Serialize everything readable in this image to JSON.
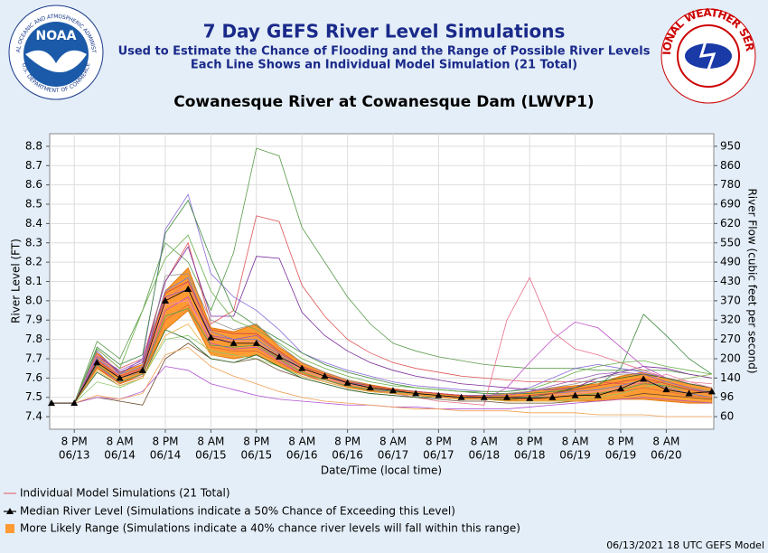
{
  "header": {
    "noaa_logo_text": "NOAA",
    "noaa_ring_top": "NATIONAL OCEANIC AND ATMOSPHERIC ADMINISTRATION",
    "noaa_ring_bottom": "U.S. DEPARTMENT OF COMMERCE",
    "nws_logo_text": "NATIONAL WEATHER SERVICE"
  },
  "footer": "06/13/2021 18 UTC GEFS Model",
  "chart_data": {
    "type": "line",
    "title": "7 Day GEFS River Level Simulations",
    "subtitle": [
      "Used to Estimate the Chance of Flooding and the Range of Possible River Levels",
      "Each Line Shows an Individual Model Simulation (21 Total)"
    ],
    "station": "Cowanesque River at Cowanesque Dam (LWVP1)",
    "y_label": "River Level (FT)",
    "y2_label": "River Flow (cubic feet per second)",
    "x_label": "Date/Time (local time)",
    "categories": [
      null,
      [
        "8 PM",
        "06/13"
      ],
      null,
      [
        "8 AM",
        "06/14"
      ],
      null,
      [
        "8 PM",
        "06/14"
      ],
      null,
      [
        "8 AM",
        "06/15"
      ],
      null,
      [
        "8 PM",
        "06/15"
      ],
      null,
      [
        "8 AM",
        "06/16"
      ],
      null,
      [
        "8 PM",
        "06/16"
      ],
      null,
      [
        "8 AM",
        "06/17"
      ],
      null,
      [
        "8 PM",
        "06/17"
      ],
      null,
      [
        "8 AM",
        "06/18"
      ],
      null,
      [
        "8 PM",
        "06/18"
      ],
      null,
      [
        "8 AM",
        "06/19"
      ],
      null,
      [
        "8 PM",
        "06/19"
      ],
      null,
      [
        "8 AM",
        "06/20"
      ],
      null,
      null
    ],
    "ylim": [
      7.335,
      8.865
    ],
    "yticks": [
      7.4,
      7.5,
      7.6,
      7.7,
      7.8,
      7.9,
      {
        "value": 8,
        "label": "8.0"
      },
      8.1,
      8.2,
      8.3,
      8.4,
      8.5,
      8.6,
      8.7,
      8.8
    ],
    "y2ticks": [
      60,
      96,
      140,
      200,
      270,
      320,
      370,
      430,
      490,
      550,
      620,
      690,
      780,
      860,
      950
    ],
    "grid": true,
    "simulations": {
      "name": "Individual Model Simulations (21 Total)",
      "legend_color": "#e8707a",
      "series": [
        {
          "color": "#5a9a4a",
          "values": [
            7.47,
            7.47,
            7.79,
            7.7,
            7.95,
            8.3,
            8.2,
            7.95,
            8.25,
            8.79,
            8.75,
            8.38,
            8.2,
            8.02,
            7.88,
            7.78,
            7.74,
            7.71,
            7.69,
            7.67,
            7.66,
            7.65,
            7.65,
            7.65,
            7.64,
            7.64,
            7.64,
            7.64,
            7.62,
            7.6
          ]
        },
        {
          "color": "#e05555",
          "values": [
            7.47,
            7.47,
            7.75,
            7.65,
            7.7,
            8.1,
            8.3,
            7.88,
            7.95,
            8.44,
            8.41,
            8.08,
            7.92,
            7.8,
            7.73,
            7.68,
            7.65,
            7.63,
            7.61,
            7.6,
            7.59,
            7.58,
            7.58,
            7.58,
            7.58,
            7.57,
            7.57,
            7.58,
            7.6,
            7.62
          ]
        },
        {
          "color": "#8a6ad8",
          "values": [
            7.47,
            7.47,
            7.74,
            7.62,
            7.7,
            8.37,
            8.55,
            8.14,
            8.02,
            7.95,
            7.85,
            7.73,
            7.68,
            7.64,
            7.61,
            7.58,
            7.56,
            7.55,
            7.54,
            7.53,
            7.53,
            7.55,
            7.6,
            7.65,
            7.67,
            7.65,
            7.63,
            7.6,
            7.57,
            7.55
          ]
        },
        {
          "color": "#3f8a3f",
          "values": [
            7.47,
            7.47,
            7.76,
            7.67,
            7.72,
            8.35,
            8.52,
            8.22,
            7.95,
            7.87,
            7.8,
            7.73,
            7.67,
            7.63,
            7.6,
            7.57,
            7.55,
            7.54,
            7.53,
            7.52,
            7.52,
            7.52,
            7.53,
            7.54,
            7.56,
            7.65,
            7.93,
            7.82,
            7.7,
            7.62
          ]
        },
        {
          "color": "#7a2a9a",
          "values": [
            7.47,
            7.47,
            7.72,
            7.63,
            7.68,
            8.1,
            8.28,
            7.92,
            7.92,
            8.23,
            8.22,
            7.94,
            7.82,
            7.74,
            7.68,
            7.64,
            7.61,
            7.59,
            7.57,
            7.56,
            7.55,
            7.54,
            7.54,
            7.55,
            7.6,
            7.63,
            7.66,
            7.65,
            7.62,
            7.6
          ]
        },
        {
          "color": "#e8708a",
          "values": [
            7.47,
            7.47,
            7.7,
            7.6,
            7.65,
            8.0,
            8.1,
            7.82,
            7.78,
            7.78,
            7.7,
            7.64,
            7.6,
            7.56,
            7.54,
            7.52,
            7.5,
            7.48,
            7.47,
            7.46,
            7.9,
            8.12,
            7.84,
            7.75,
            7.72,
            7.68,
            7.64,
            7.6,
            7.58,
            7.57
          ]
        },
        {
          "color": "#c050c8",
          "values": [
            7.47,
            7.47,
            7.66,
            7.58,
            7.62,
            7.95,
            8.02,
            7.78,
            7.75,
            7.76,
            7.69,
            7.62,
            7.58,
            7.55,
            7.53,
            7.52,
            7.51,
            7.5,
            7.49,
            7.49,
            7.55,
            7.68,
            7.8,
            7.89,
            7.86,
            7.76,
            7.66,
            7.6,
            7.57,
            7.55
          ]
        },
        {
          "color": "#6ab04a",
          "values": [
            7.47,
            7.47,
            7.75,
            7.65,
            7.95,
            8.22,
            8.34,
            8.05,
            7.9,
            7.85,
            7.78,
            7.7,
            7.65,
            7.61,
            7.58,
            7.56,
            7.55,
            7.54,
            7.53,
            7.53,
            7.53,
            7.54,
            7.58,
            7.63,
            7.66,
            7.68,
            7.69,
            7.66,
            7.64,
            7.62
          ]
        },
        {
          "color": "#8ac86a",
          "values": [
            7.47,
            7.47,
            7.58,
            7.55,
            7.6,
            7.8,
            7.82,
            7.74,
            7.72,
            7.7,
            7.66,
            7.61,
            7.58,
            7.55,
            7.53,
            7.52,
            7.51,
            7.5,
            7.49,
            7.49,
            7.48,
            7.48,
            7.48,
            7.49,
            7.5,
            7.52,
            7.55,
            7.58,
            7.6,
            7.62
          ]
        },
        {
          "color": "#6a4a2a",
          "values": [
            7.47,
            7.47,
            7.5,
            7.48,
            7.46,
            7.7,
            7.78,
            7.7,
            7.68,
            7.7,
            7.64,
            7.6,
            7.57,
            7.54,
            7.52,
            7.51,
            7.5,
            7.49,
            7.48,
            7.48,
            7.47,
            7.47,
            7.47,
            7.48,
            7.49,
            7.5,
            7.52,
            7.51,
            7.5,
            7.49
          ]
        },
        {
          "color": "#b050d0",
          "values": [
            7.47,
            7.47,
            7.5,
            7.49,
            7.53,
            7.66,
            7.64,
            7.57,
            7.54,
            7.51,
            7.49,
            7.48,
            7.47,
            7.46,
            7.46,
            7.45,
            7.45,
            7.44,
            7.44,
            7.44,
            7.44,
            7.45,
            7.46,
            7.47,
            7.48,
            7.49,
            7.5,
            7.49,
            7.48,
            7.47
          ]
        },
        {
          "color": "#f0a050",
          "values": [
            7.47,
            7.47,
            7.51,
            7.49,
            7.52,
            7.72,
            7.76,
            7.66,
            7.61,
            7.57,
            7.53,
            7.5,
            7.48,
            7.47,
            7.46,
            7.45,
            7.44,
            7.44,
            7.43,
            7.43,
            7.43,
            7.42,
            7.42,
            7.42,
            7.41,
            7.41,
            7.41,
            7.4,
            7.4,
            7.4
          ]
        },
        {
          "color": "#6a7ad8",
          "values": [
            7.47,
            7.47,
            7.7,
            7.62,
            7.66,
            8.05,
            8.12,
            7.84,
            7.8,
            7.8,
            7.72,
            7.65,
            7.61,
            7.58,
            7.55,
            7.53,
            7.52,
            7.51,
            7.5,
            7.5,
            7.5,
            7.51,
            7.52,
            7.53,
            7.54,
            7.56,
            7.59,
            7.55,
            7.52,
            7.5
          ]
        },
        {
          "color": "#909090",
          "values": [
            7.47,
            7.47,
            7.68,
            7.6,
            7.63,
            8.13,
            8.14,
            7.9,
            7.85,
            7.88,
            7.77,
            7.68,
            7.63,
            7.59,
            7.56,
            7.54,
            7.53,
            7.52,
            7.51,
            7.51,
            7.52,
            7.53,
            7.55,
            7.57,
            7.6,
            7.62,
            7.62,
            7.58,
            7.55,
            7.53
          ]
        },
        {
          "color": "#e06a40",
          "values": [
            7.47,
            7.47,
            7.66,
            7.57,
            7.61,
            7.9,
            7.98,
            7.76,
            7.74,
            7.74,
            7.68,
            7.62,
            7.58,
            7.55,
            7.53,
            7.52,
            7.51,
            7.5,
            7.5,
            7.49,
            7.49,
            7.49,
            7.5,
            7.51,
            7.52,
            7.53,
            7.55,
            7.53,
            7.51,
            7.5
          ]
        },
        {
          "color": "#2a6a2a",
          "values": [
            7.47,
            7.47,
            7.63,
            7.56,
            7.6,
            7.85,
            7.8,
            7.7,
            7.68,
            7.72,
            7.66,
            7.6,
            7.57,
            7.54,
            7.52,
            7.51,
            7.5,
            7.5,
            7.49,
            7.49,
            7.49,
            7.5,
            7.52,
            7.55,
            7.58,
            7.6,
            7.62,
            7.6,
            7.57,
            7.55
          ]
        },
        {
          "color": "#f090b0",
          "values": [
            7.47,
            7.47,
            7.72,
            7.61,
            7.65,
            7.98,
            8.0,
            7.8,
            7.79,
            7.79,
            7.71,
            7.64,
            7.6,
            7.57,
            7.55,
            7.53,
            7.52,
            7.51,
            7.5,
            7.5,
            7.5,
            7.5,
            7.51,
            7.52,
            7.53,
            7.55,
            7.58,
            7.62,
            7.58,
            7.55
          ]
        },
        {
          "color": "#9a5ab8",
          "values": [
            7.47,
            7.47,
            7.71,
            7.64,
            7.69,
            8.02,
            8.06,
            7.82,
            7.8,
            7.82,
            7.73,
            7.66,
            7.62,
            7.58,
            7.56,
            7.54,
            7.53,
            7.52,
            7.51,
            7.51,
            7.51,
            7.53,
            7.56,
            7.59,
            7.62,
            7.63,
            7.62,
            7.58,
            7.55,
            7.52
          ]
        },
        {
          "color": "#4aa05a",
          "values": [
            7.47,
            7.47,
            7.67,
            7.58,
            7.62,
            7.92,
            7.96,
            7.77,
            7.76,
            7.77,
            7.7,
            7.63,
            7.59,
            7.56,
            7.54,
            7.53,
            7.52,
            7.51,
            7.5,
            7.5,
            7.5,
            7.5,
            7.5,
            7.51,
            7.52,
            7.54,
            7.57,
            7.56,
            7.54,
            7.52
          ]
        },
        {
          "color": "#f0b040",
          "values": [
            7.47,
            7.47,
            7.64,
            7.56,
            7.6,
            7.82,
            7.88,
            7.72,
            7.71,
            7.73,
            7.67,
            7.61,
            7.58,
            7.55,
            7.53,
            7.52,
            7.51,
            7.5,
            7.49,
            7.49,
            7.48,
            7.48,
            7.48,
            7.48,
            7.49,
            7.5,
            7.51,
            7.5,
            7.49,
            7.48
          ]
        },
        {
          "color": "#d04040",
          "values": [
            7.47,
            7.47,
            7.69,
            7.61,
            7.65,
            8.04,
            8.1,
            7.85,
            7.83,
            7.83,
            7.74,
            7.66,
            7.62,
            7.58,
            7.56,
            7.54,
            7.53,
            7.52,
            7.51,
            7.5,
            7.5,
            7.51,
            7.52,
            7.54,
            7.56,
            7.58,
            7.6,
            7.57,
            7.54,
            7.52
          ]
        }
      ]
    },
    "range": {
      "name": "More Likely Range (Simulations indicate a 40% chance river levels will fall within this range)",
      "color": "#ff9a33",
      "low": [
        7.47,
        7.47,
        7.65,
        7.57,
        7.62,
        7.85,
        7.95,
        7.72,
        7.7,
        7.72,
        7.66,
        7.62,
        7.59,
        7.555,
        7.535,
        7.52,
        7.51,
        7.5,
        7.49,
        7.49,
        7.485,
        7.48,
        7.48,
        7.48,
        7.48,
        7.49,
        7.49,
        7.48,
        7.47,
        7.47
      ],
      "high": [
        7.47,
        7.47,
        7.73,
        7.63,
        7.67,
        8.05,
        8.17,
        7.86,
        7.84,
        7.88,
        7.76,
        7.68,
        7.63,
        7.59,
        7.565,
        7.545,
        7.53,
        7.52,
        7.51,
        7.51,
        7.52,
        7.53,
        7.55,
        7.56,
        7.57,
        7.61,
        7.63,
        7.6,
        7.57,
        7.55
      ]
    },
    "median": {
      "name": "Median River Level (Simulations indicate a 50% Chance of Exceeding this Level)",
      "color": "#000000",
      "values": [
        7.47,
        7.47,
        7.68,
        7.6,
        7.64,
        8.0,
        8.06,
        7.81,
        7.78,
        7.78,
        7.71,
        7.65,
        7.61,
        7.575,
        7.55,
        7.535,
        7.52,
        7.51,
        7.5,
        7.5,
        7.5,
        7.495,
        7.5,
        7.51,
        7.51,
        7.545,
        7.595,
        7.54,
        7.52,
        7.53
      ]
    }
  }
}
